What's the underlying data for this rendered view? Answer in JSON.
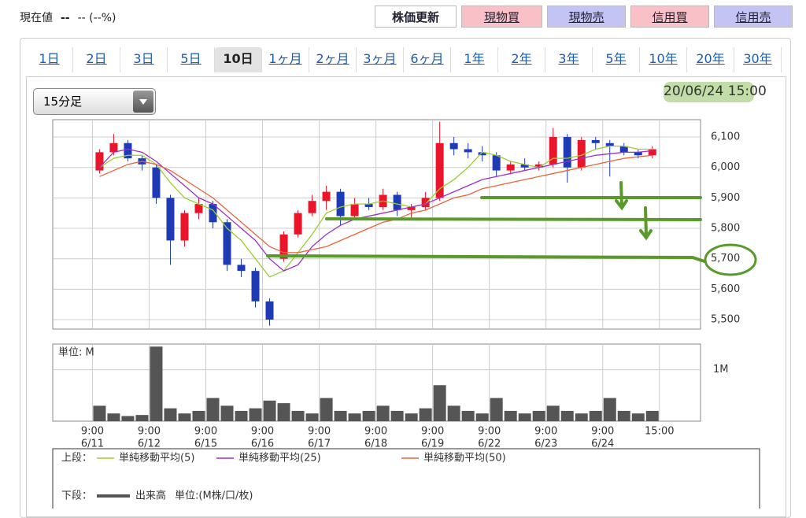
{
  "header": {
    "label": "現在値",
    "price": "--",
    "change": "-- (--%)"
  },
  "buttons": [
    "株価更新",
    "現物買",
    "現物売",
    "信用買",
    "信用売"
  ],
  "tabs": [
    "1日",
    "2日",
    "3日",
    "5日",
    "10日",
    "1ヶ月",
    "2ヶ月",
    "3ヶ月",
    "6ヶ月",
    "1年",
    "2年",
    "3年",
    "5年",
    "10年",
    "20年",
    "30年"
  ],
  "active_tab": 4,
  "interval": "15分足",
  "timestamp": {
    "date": "20/06/24",
    "time": "15:00"
  },
  "legend": {
    "upper": "上段：",
    "lower": "下段："
  },
  "chart_data": [
    {
      "type": "candlestick",
      "x": [
        0,
        1,
        2,
        3,
        4,
        5,
        6,
        7,
        8,
        9,
        10,
        11,
        12,
        13,
        14,
        15,
        16,
        17,
        18,
        19,
        20,
        21,
        22,
        23,
        24,
        25,
        26,
        27,
        28,
        29,
        30,
        31,
        32,
        33,
        34,
        35,
        36,
        37,
        38,
        39
      ],
      "open": [
        5990,
        6050,
        6080,
        6030,
        6000,
        5900,
        5760,
        5850,
        5880,
        5820,
        5680,
        5660,
        5560,
        5700,
        5780,
        5850,
        5890,
        5920,
        5840,
        5880,
        5870,
        5910,
        5860,
        5870,
        5900,
        6080,
        6060,
        6050,
        6040,
        5990,
        6010,
        6000,
        6010,
        6100,
        6000,
        6090,
        6080,
        6070,
        6050,
        6040
      ],
      "high": [
        6060,
        6110,
        6090,
        6040,
        6010,
        5910,
        5860,
        5900,
        5890,
        5830,
        5700,
        5670,
        5570,
        5790,
        5860,
        5910,
        5940,
        5930,
        5900,
        5900,
        5930,
        5920,
        5880,
        5920,
        6150,
        6100,
        6080,
        6070,
        6050,
        6020,
        6030,
        6020,
        6130,
        6110,
        6100,
        6100,
        6090,
        6080,
        6060,
        6070
      ],
      "low": [
        5980,
        6040,
        6020,
        5990,
        5880,
        5680,
        5740,
        5830,
        5800,
        5660,
        5640,
        5540,
        5480,
        5690,
        5770,
        5840,
        5860,
        5810,
        5830,
        5860,
        5860,
        5840,
        5830,
        5860,
        5890,
        6040,
        6030,
        6020,
        5970,
        5980,
        5990,
        5990,
        6000,
        5950,
        5990,
        6060,
        5970,
        6040,
        6030,
        6030
      ],
      "close": [
        6050,
        6080,
        6030,
        6010,
        5900,
        5760,
        5850,
        5880,
        5820,
        5680,
        5660,
        5560,
        5500,
        5780,
        5850,
        5890,
        5920,
        5840,
        5880,
        5870,
        5910,
        5860,
        5870,
        5900,
        6080,
        6060,
        6050,
        6040,
        5990,
        6010,
        6000,
        6010,
        6100,
        6000,
        6090,
        6080,
        6070,
        6050,
        6040,
        6060
      ],
      "up_color": "#e8152b",
      "down_color": "#1f3bb3",
      "series": [
        {
          "name": "単純移動平均(5)",
          "color": "#9acd32",
          "values": [
            6000,
            6030,
            6040,
            6040,
            6010,
            5950,
            5900,
            5880,
            5860,
            5800,
            5760,
            5700,
            5640,
            5660,
            5720,
            5780,
            5850,
            5870,
            5880,
            5880,
            5890,
            5880,
            5870,
            5880,
            5930,
            5960,
            6000,
            6050,
            6040,
            6020,
            6010,
            6000,
            6030,
            6030,
            6040,
            6060,
            6070,
            6070,
            6060,
            6060
          ]
        },
        {
          "name": "単純移動平均(25)",
          "color": "#9b30c8",
          "values": [
            6000,
            6050,
            6060,
            6050,
            6020,
            5980,
            5940,
            5900,
            5880,
            5840,
            5800,
            5760,
            5700,
            5660,
            5680,
            5740,
            5780,
            5810,
            5830,
            5840,
            5850,
            5860,
            5870,
            5880,
            5900,
            5920,
            5940,
            5960,
            5970,
            5980,
            5990,
            6000,
            6010,
            6020,
            6030,
            6040,
            6045,
            6050,
            6050,
            6055
          ]
        },
        {
          "name": "単純移動平均(50)",
          "color": "#e8643c",
          "values": [
            5970,
            5990,
            6010,
            6020,
            6010,
            5990,
            5960,
            5930,
            5900,
            5860,
            5820,
            5780,
            5740,
            5720,
            5720,
            5730,
            5740,
            5760,
            5780,
            5800,
            5820,
            5830,
            5850,
            5860,
            5880,
            5900,
            5910,
            5930,
            5940,
            5950,
            5960,
            5970,
            5980,
            5990,
            6000,
            6010,
            6020,
            6030,
            6035,
            6040
          ]
        }
      ],
      "ylim": [
        5469,
        6157
      ],
      "yticks": [
        {
          "value": 5500,
          "label": "5,500"
        },
        {
          "value": 5600,
          "label": "5,600"
        },
        {
          "value": 5700,
          "label": "5,700"
        },
        {
          "value": 5800,
          "label": "5,800"
        },
        {
          "value": 5900,
          "label": "5,900"
        },
        {
          "value": 6000,
          "label": "6,000"
        },
        {
          "value": 6100,
          "label": "6,100"
        }
      ],
      "grid": true
    },
    {
      "type": "bar",
      "name": "出来高",
      "unit_legend": "単位:(M株/口/枚)",
      "unit_label": "単位: M",
      "color": "#555555",
      "values": [
        0.3,
        0.15,
        0.1,
        0.12,
        1.45,
        0.25,
        0.15,
        0.2,
        0.45,
        0.3,
        0.2,
        0.25,
        0.4,
        0.35,
        0.2,
        0.15,
        0.45,
        0.2,
        0.15,
        0.2,
        0.3,
        0.2,
        0.15,
        0.25,
        0.7,
        0.3,
        0.2,
        0.15,
        0.45,
        0.2,
        0.15,
        0.2,
        0.3,
        0.2,
        0.15,
        0.2,
        0.45,
        0.2,
        0.15,
        0.2
      ],
      "ylim": [
        0,
        1.5
      ],
      "yticks": [
        {
          "value": 1,
          "label": "1M"
        }
      ],
      "xlim": [
        -2.8,
        42.9
      ],
      "xticks": [
        {
          "value": 0,
          "label": "9:00",
          "date": "6/11"
        },
        {
          "value": 4,
          "label": "9:00",
          "date": "6/12"
        },
        {
          "value": 8,
          "label": "9:00",
          "date": "6/15"
        },
        {
          "value": 12,
          "label": "9:00",
          "date": "6/16"
        },
        {
          "value": 16,
          "label": "9:00",
          "date": "6/17"
        },
        {
          "value": 20,
          "label": "9:00",
          "date": "6/18"
        },
        {
          "value": 24,
          "label": "9:00",
          "date": "6/19"
        },
        {
          "value": 28,
          "label": "9:00",
          "date": "6/22"
        },
        {
          "value": 32,
          "label": "9:00",
          "date": "6/23"
        },
        {
          "value": 36,
          "label": "9:00",
          "date": "6/24"
        },
        {
          "value": 40,
          "label": "15:00"
        }
      ],
      "grid": true
    }
  ]
}
